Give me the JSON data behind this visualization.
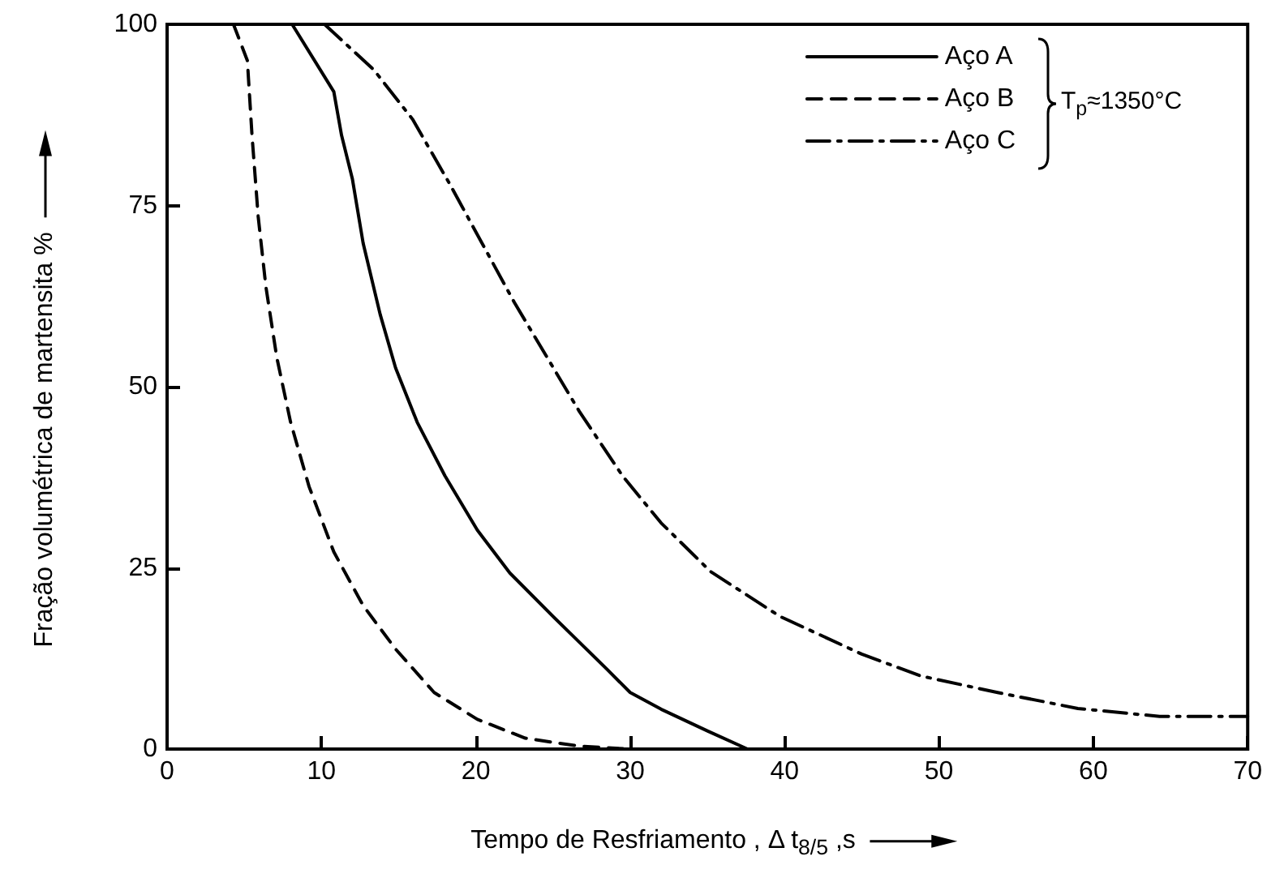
{
  "chart_data": {
    "type": "line",
    "xlabel": "Tempo de Resfriamento , Δ t$_{8/5}$ ,s",
    "ylabel": "Fração volumétrica de martensita %",
    "annotations": [
      "T$_{p}$≈1350°C"
    ],
    "xlim": [
      0,
      70
    ],
    "xticks": [
      0,
      10,
      20,
      30,
      40,
      50,
      60,
      70
    ],
    "ylim": [
      0,
      100
    ],
    "yticks": [
      0,
      25,
      50,
      75,
      100
    ],
    "grid": false,
    "legend": "top right",
    "marker": "none",
    "series": [
      {
        "name": "Aço A",
        "color": "#000000",
        "line_style": "solid",
        "x": [
          8.1,
          10.8,
          11.3,
          12,
          12.7,
          13.8,
          14.8,
          16.2,
          18,
          20.1,
          22.2,
          25,
          28.5,
          30,
          32,
          35,
          37.6
        ],
        "values": [
          100,
          90.7,
          84.7,
          78.7,
          69.8,
          60,
          52.6,
          45.1,
          37.7,
          30.2,
          24.3,
          18.3,
          11,
          7.8,
          5.5,
          2.5,
          0
        ]
      },
      {
        "name": "Aço B",
        "color": "#000000",
        "line_style": "dashed",
        "x": [
          4.3,
          5.2,
          5.5,
          5.9,
          6.4,
          7.1,
          8,
          9.2,
          10.8,
          12.7,
          14.8,
          17.3,
          20.1,
          23.2,
          26.7,
          29.9
        ],
        "values": [
          100,
          95,
          84.7,
          73.5,
          63.8,
          54.1,
          45.1,
          36.2,
          27.2,
          19.8,
          13.8,
          7.8,
          4.1,
          1.5,
          0.4,
          0
        ]
      },
      {
        "name": "Aço C",
        "color": "#000000",
        "line_style": "dashdot",
        "x": [
          10.2,
          13.4,
          15.9,
          18.3,
          20.4,
          22.5,
          24.6,
          26.7,
          29.5,
          32,
          35.2,
          39.7,
          45,
          48.8,
          53.8,
          59,
          64.3,
          70
        ],
        "values": [
          100,
          93.7,
          86.9,
          78,
          69.8,
          61.6,
          54.1,
          46.6,
          37.7,
          31.2,
          24.5,
          18.3,
          13.1,
          10.1,
          7.8,
          5.6,
          4.5,
          4.5
        ]
      }
    ]
  }
}
